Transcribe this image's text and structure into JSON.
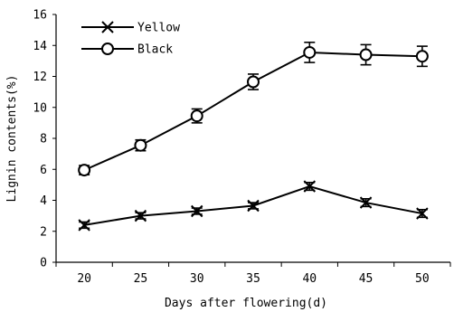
{
  "chart_data": {
    "type": "line",
    "xlabel": "Days after flowering(d)",
    "ylabel": "Lignin contents(%)",
    "categories": [
      "20",
      "25",
      "30",
      "35",
      "40",
      "45",
      "50"
    ],
    "ylim": [
      0,
      16
    ],
    "yticks": [
      "0",
      "2",
      "4",
      "6",
      "8",
      "10",
      "12",
      "14",
      "16"
    ],
    "grid": false,
    "legend_position": "top-left",
    "series": [
      {
        "name": "Yellow",
        "marker": "x-cross",
        "values": [
          2.4,
          3.0,
          3.3,
          3.65,
          4.9,
          3.85,
          3.15
        ],
        "errors": [
          0.2,
          0.2,
          0.2,
          0.2,
          0.25,
          0.25,
          0.25
        ]
      },
      {
        "name": "Black",
        "marker": "open-circle",
        "values": [
          5.95,
          7.55,
          9.45,
          11.65,
          13.55,
          13.4,
          13.3
        ],
        "errors": [
          0.3,
          0.35,
          0.45,
          0.5,
          0.65,
          0.65,
          0.65
        ]
      }
    ]
  }
}
